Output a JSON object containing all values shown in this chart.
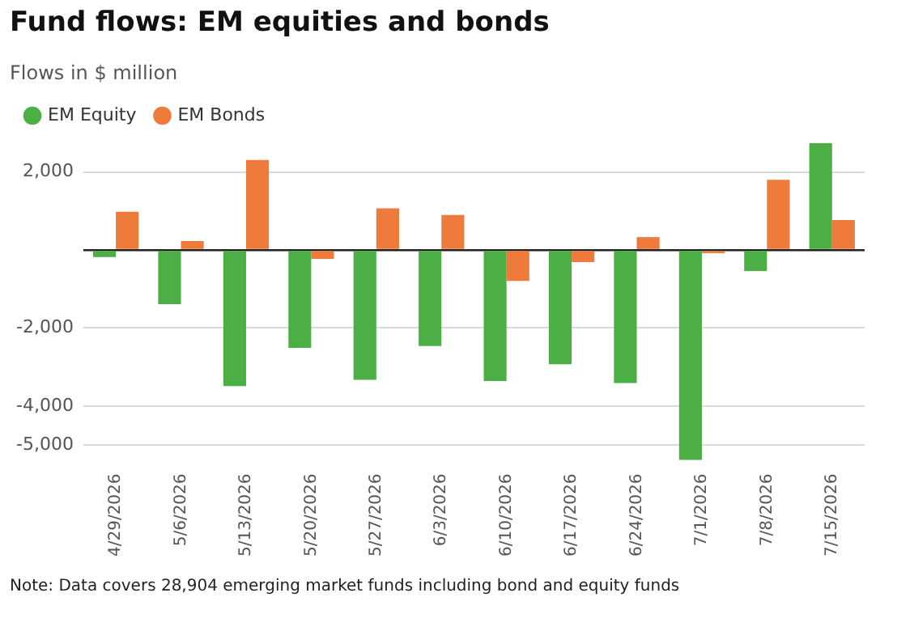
{
  "chart_data": {
    "type": "bar",
    "title": "Fund flows: EM equities and bonds",
    "subtitle": "Flows in $ million",
    "categories": [
      "4/29/2026",
      "5/6/2026",
      "5/13/2026",
      "5/20/2026",
      "5/27/2026",
      "6/3/2026",
      "6/10/2026",
      "6/17/2026",
      "6/24/2026",
      "7/1/2026",
      "7/8/2026",
      "7/15/2026"
    ],
    "series": [
      {
        "name": "EM Equity",
        "color": "#4caf45",
        "values": [
          -180,
          -1390,
          -3490,
          -2510,
          -3330,
          -2460,
          -3360,
          -2930,
          -3410,
          -5380,
          -540,
          2740
        ]
      },
      {
        "name": "EM Bonds",
        "color": "#ee7a3c",
        "values": [
          980,
          230,
          2310,
          -230,
          1070,
          900,
          -790,
          -310,
          330,
          -80,
          1800,
          770
        ]
      }
    ],
    "ylim": [
      -5400,
      2800
    ],
    "yticks": [
      {
        "value": -5000,
        "label": "-5,000"
      },
      {
        "value": -4000,
        "label": "-4,000"
      },
      {
        "value": -2000,
        "label": "-2,000"
      },
      {
        "value": 0,
        "label": null
      },
      {
        "value": 2000,
        "label": "2,000"
      }
    ],
    "grid": "y",
    "legend": "top left",
    "annotations": [
      "Note: Data covers 28,904 emerging market funds including bond and equity funds"
    ]
  }
}
